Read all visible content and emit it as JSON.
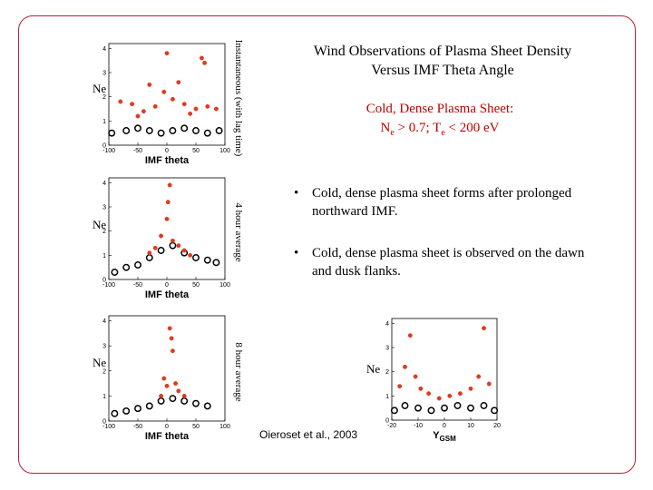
{
  "title_line1": "Wind Observations of Plasma Sheet Density",
  "title_line2": "Versus IMF Theta Angle",
  "subtitle_line1": "Cold, Dense Plasma Sheet:",
  "subtitle_line2_ne": "N",
  "subtitle_sub_e": "e",
  "subtitle_line2_mid": " > 0.7; T",
  "subtitle_sub_e2": "e",
  "subtitle_line2_end": " < 200 eV",
  "bullets": [
    "Cold, dense plasma sheet forms after prolonged northward IMF.",
    "Cold, dense plasma sheet is observed on the dawn and dusk flanks."
  ],
  "bullet_glyph": "•",
  "citation": "Oieroset et al., 2003",
  "colors": {
    "frame": "#b5233a",
    "red_points": "#e03a1e",
    "black_points": "#000000",
    "subtitle": "#c00000"
  },
  "chart_data": [
    {
      "type": "scatter",
      "xlabel": "IMF theta",
      "ylabel": "Ne",
      "side_label": "Instantaneous (with lag time)",
      "x_ticks": [
        "-100",
        "-50",
        "0",
        "50",
        "100"
      ],
      "y_ticks": [
        "0",
        "1",
        "2",
        "3",
        "4"
      ],
      "xlim": [
        -100,
        100
      ],
      "ylim": [
        0,
        4.2
      ],
      "series": [
        {
          "color": "red",
          "points": [
            [
              -80,
              1.8
            ],
            [
              -60,
              1.7
            ],
            [
              -40,
              1.4
            ],
            [
              -20,
              1.6
            ],
            [
              -5,
              2.2
            ],
            [
              0,
              3.8
            ],
            [
              10,
              1.9
            ],
            [
              30,
              1.7
            ],
            [
              50,
              1.5
            ],
            [
              70,
              1.6
            ],
            [
              85,
              1.5
            ],
            [
              60,
              3.6
            ],
            [
              65,
              3.4
            ],
            [
              -30,
              2.5
            ],
            [
              20,
              2.6
            ],
            [
              -50,
              1.2
            ],
            [
              40,
              1.3
            ]
          ]
        },
        {
          "color": "black",
          "points": [
            [
              -95,
              0.5
            ],
            [
              -70,
              0.6
            ],
            [
              -50,
              0.7
            ],
            [
              -30,
              0.6
            ],
            [
              -10,
              0.5
            ],
            [
              10,
              0.6
            ],
            [
              30,
              0.7
            ],
            [
              50,
              0.6
            ],
            [
              70,
              0.5
            ],
            [
              90,
              0.6
            ]
          ]
        }
      ]
    },
    {
      "type": "scatter",
      "xlabel": "IMF theta",
      "ylabel": "Ne",
      "side_label": "4 hour average",
      "x_ticks": [
        "-100",
        "-50",
        "0",
        "50",
        "100"
      ],
      "y_ticks": [
        "0",
        "1",
        "2",
        "3",
        "4"
      ],
      "xlim": [
        -100,
        100
      ],
      "ylim": [
        0,
        4.2
      ],
      "series": [
        {
          "color": "red",
          "points": [
            [
              -20,
              1.3
            ],
            [
              -10,
              1.8
            ],
            [
              0,
              2.5
            ],
            [
              5,
              3.9
            ],
            [
              10,
              1.6
            ],
            [
              20,
              1.4
            ],
            [
              30,
              1.2
            ],
            [
              -30,
              1.1
            ],
            [
              40,
              1.0
            ],
            [
              2,
              3.2
            ]
          ]
        },
        {
          "color": "black",
          "points": [
            [
              -90,
              0.3
            ],
            [
              -70,
              0.5
            ],
            [
              -50,
              0.6
            ],
            [
              -30,
              0.9
            ],
            [
              -10,
              1.2
            ],
            [
              10,
              1.4
            ],
            [
              30,
              1.1
            ],
            [
              50,
              0.9
            ],
            [
              70,
              0.8
            ],
            [
              85,
              0.7
            ]
          ]
        }
      ]
    },
    {
      "type": "scatter",
      "xlabel": "IMF theta",
      "ylabel": "Ne",
      "side_label": "8 hour average",
      "x_ticks": [
        "-100",
        "-50",
        "0",
        "50",
        "100"
      ],
      "y_ticks": [
        "0",
        "1",
        "2",
        "3",
        "4"
      ],
      "xlim": [
        -100,
        100
      ],
      "ylim": [
        0,
        4.2
      ],
      "series": [
        {
          "color": "red",
          "points": [
            [
              -10,
              1.0
            ],
            [
              0,
              1.4
            ],
            [
              5,
              3.7
            ],
            [
              10,
              2.8
            ],
            [
              15,
              1.5
            ],
            [
              20,
              1.2
            ],
            [
              30,
              1.0
            ],
            [
              -5,
              1.7
            ],
            [
              8,
              3.3
            ]
          ]
        },
        {
          "color": "black",
          "points": [
            [
              -90,
              0.3
            ],
            [
              -70,
              0.4
            ],
            [
              -50,
              0.5
            ],
            [
              -30,
              0.6
            ],
            [
              -10,
              0.8
            ],
            [
              10,
              0.9
            ],
            [
              30,
              0.8
            ],
            [
              50,
              0.7
            ],
            [
              70,
              0.6
            ]
          ]
        }
      ]
    },
    {
      "type": "scatter",
      "xlabel": "Y",
      "xlabel_sub": "GSM",
      "ylabel": "Ne",
      "x_ticks": [
        "-20",
        "-10",
        "0",
        "10",
        "20"
      ],
      "y_ticks": [
        "0",
        "1",
        "2",
        "3",
        "4"
      ],
      "xlim": [
        -20,
        20
      ],
      "ylim": [
        0,
        4.2
      ],
      "series": [
        {
          "color": "red",
          "points": [
            [
              -17,
              1.4
            ],
            [
              -15,
              2.2
            ],
            [
              -13,
              3.5
            ],
            [
              -11,
              1.8
            ],
            [
              -9,
              1.3
            ],
            [
              -6,
              1.1
            ],
            [
              -2,
              0.9
            ],
            [
              2,
              1.0
            ],
            [
              6,
              1.1
            ],
            [
              10,
              1.3
            ],
            [
              13,
              1.8
            ],
            [
              15,
              3.8
            ],
            [
              17,
              1.5
            ]
          ]
        },
        {
          "color": "black",
          "points": [
            [
              -19,
              0.4
            ],
            [
              -15,
              0.6
            ],
            [
              -10,
              0.5
            ],
            [
              -5,
              0.4
            ],
            [
              0,
              0.5
            ],
            [
              5,
              0.6
            ],
            [
              10,
              0.5
            ],
            [
              15,
              0.6
            ],
            [
              19,
              0.4
            ]
          ]
        }
      ]
    }
  ]
}
